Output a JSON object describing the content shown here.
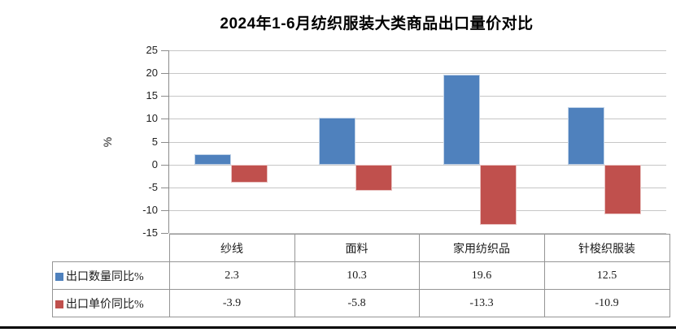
{
  "title": "2024年1-6月纺织服装大类商品出口量价对比",
  "colors": {
    "series_quantity": "#4F81BD",
    "series_price": "#C0504D",
    "axis_line": "#8C8C8C",
    "gridline": "#C6C6C6",
    "table_border": "#959595"
  },
  "chart_data": {
    "type": "bar",
    "title": "2024年1-6月纺织服装大类商品出口量价对比",
    "xlabel": "",
    "ylabel": "%",
    "ylim": [
      -15,
      25
    ],
    "ytick_step": 5,
    "grid": true,
    "legend_position": "data-table-left",
    "categories": [
      "纱线",
      "面料",
      "家用纺织品",
      "针梭织服装"
    ],
    "series": [
      {
        "name": "出口数量同比%",
        "color": "#4F81BD",
        "values": [
          2.3,
          10.3,
          19.6,
          12.5
        ]
      },
      {
        "name": "出口单价同比%",
        "color": "#C0504D",
        "values": [
          -3.9,
          -5.8,
          -13.3,
          -10.9
        ]
      }
    ]
  }
}
